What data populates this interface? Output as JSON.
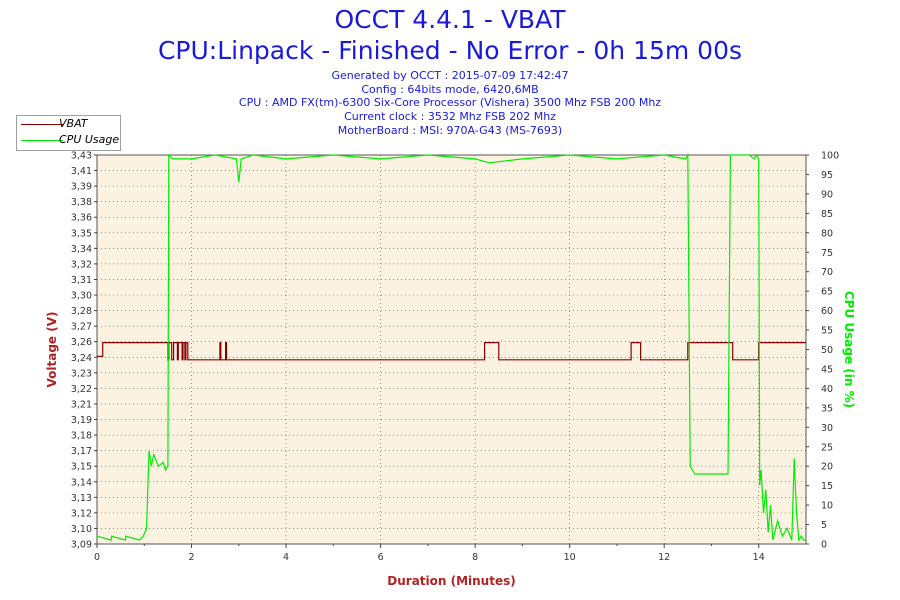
{
  "header": {
    "title": "OCCT 4.4.1 - VBAT",
    "subtitle": "CPU:Linpack - Finished - No Error - 0h 15m 00s",
    "info_lines": [
      "Generated by OCCT : 2015-07-09 17:42:47",
      "Config : 64bits mode, 6420,6MB",
      "CPU : AMD FX(tm)-6300 Six-Core Processor (Vishera) 3500 Mhz FSB 200 Mhz",
      "Current clock : 3532 Mhz FSB 202 Mhz",
      "MotherBoard : MSI: 970A-G43 (MS-7693)"
    ]
  },
  "legend": {
    "vbat_label": "VBAT",
    "cpu_label": "CPU Usage"
  },
  "colors": {
    "vbat": "#8b0000",
    "cpu": "#00ee00",
    "plot_bg": "#fbf2e1",
    "title": "#1a1ad8",
    "xlabel": "#b22222"
  },
  "chart_data": {
    "type": "line",
    "xlabel": "Duration (Minutes)",
    "ylabel": "Voltage (V)",
    "y2label": "CPU Usage (in %)",
    "xlim": [
      0,
      15
    ],
    "ylim": [
      3.09,
      3.43
    ],
    "y2lim": [
      0,
      100
    ],
    "grid": true,
    "legend_position": "top-left",
    "x_ticks": [
      "0",
      "2",
      "4",
      "6",
      "8",
      "10",
      "12",
      "14"
    ],
    "x_tick_values": [
      0,
      2,
      4,
      6,
      8,
      10,
      12,
      14
    ],
    "y_ticks": [
      "3,09",
      "3,10",
      "3,12",
      "3,13",
      "3,14",
      "3,15",
      "3,17",
      "3,18",
      "3,19",
      "3,21",
      "3,22",
      "3,23",
      "3,24",
      "3,26",
      "3,27",
      "3,28",
      "3,30",
      "3,31",
      "3,32",
      "3,34",
      "3,35",
      "3,36",
      "3,38",
      "3,39",
      "3,41",
      "3,43"
    ],
    "y2_ticks": [
      "0",
      "5",
      "10",
      "15",
      "20",
      "25",
      "30",
      "35",
      "40",
      "45",
      "50",
      "55",
      "60",
      "65",
      "70",
      "75",
      "80",
      "85",
      "90",
      "95",
      "100"
    ],
    "series": [
      {
        "name": "VBAT",
        "axis": "left",
        "x": [
          0,
          0.12,
          0.12,
          1.5,
          1.5,
          1.52,
          1.52,
          1.58,
          1.58,
          1.62,
          1.62,
          1.7,
          1.7,
          1.72,
          1.72,
          1.8,
          1.8,
          1.82,
          1.82,
          1.86,
          1.86,
          1.88,
          1.88,
          1.92,
          1.92,
          1.94,
          1.94,
          2.6,
          2.6,
          2.62,
          2.62,
          2.72,
          2.72,
          2.74,
          2.74,
          8.2,
          8.2,
          8.5,
          8.5,
          11.3,
          11.3,
          11.5,
          11.5,
          12.5,
          12.5,
          13.45,
          13.45,
          14.0,
          14.0,
          15.0
        ],
        "y": [
          3.254,
          3.254,
          3.266,
          3.266,
          3.251,
          3.251,
          3.266,
          3.266,
          3.251,
          3.251,
          3.266,
          3.266,
          3.251,
          3.251,
          3.266,
          3.266,
          3.251,
          3.251,
          3.266,
          3.266,
          3.251,
          3.251,
          3.266,
          3.266,
          3.251,
          3.251,
          3.251,
          3.251,
          3.266,
          3.266,
          3.251,
          3.251,
          3.266,
          3.266,
          3.251,
          3.251,
          3.266,
          3.266,
          3.251,
          3.251,
          3.266,
          3.266,
          3.251,
          3.251,
          3.266,
          3.266,
          3.251,
          3.251,
          3.266,
          3.266
        ]
      },
      {
        "name": "CPU Usage",
        "axis": "right",
        "x": [
          0,
          0.3,
          0.31,
          0.6,
          0.61,
          0.9,
          0.98,
          1.05,
          1.1,
          1.15,
          1.2,
          1.3,
          1.4,
          1.45,
          1.5,
          1.52,
          1.6,
          2.0,
          2.5,
          2.95,
          3.0,
          3.05,
          3.3,
          4.0,
          5.0,
          6.0,
          7.0,
          8.0,
          8.3,
          9.0,
          10.0,
          11.0,
          12.0,
          12.45,
          12.5,
          12.55,
          12.65,
          13.0,
          13.35,
          13.4,
          13.5,
          13.8,
          13.9,
          13.95,
          14.0,
          14.02,
          14.05,
          14.1,
          14.15,
          14.2,
          14.25,
          14.3,
          14.4,
          14.5,
          14.6,
          14.7,
          14.75,
          14.8,
          14.85,
          14.9,
          14.95,
          15.0
        ],
        "y": [
          2,
          1,
          2,
          1,
          2,
          1,
          2,
          4,
          24,
          20,
          23,
          20,
          21,
          19,
          20,
          100,
          99,
          99,
          100,
          99,
          93,
          99,
          100,
          99,
          100,
          99,
          100,
          99,
          98,
          99,
          100,
          99,
          100,
          99,
          100,
          20,
          18,
          18,
          18,
          100,
          100,
          100,
          99,
          100,
          99,
          15,
          19,
          8,
          14,
          3,
          10,
          1,
          6,
          2,
          4,
          1,
          22,
          8,
          1,
          2,
          1,
          1
        ]
      }
    ]
  }
}
